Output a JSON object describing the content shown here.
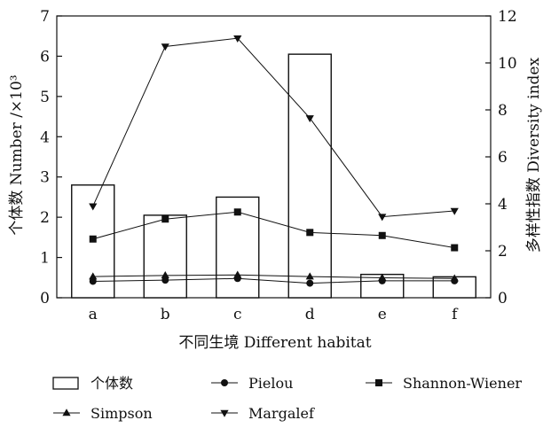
{
  "chart_data": {
    "type": "bar",
    "categories": [
      "a",
      "b",
      "c",
      "d",
      "e",
      "f"
    ],
    "xlabel": "不同生境 Different habitat",
    "ylabel_left": "个体数 Number /×10³",
    "ylabel_right": "多样性指数 Diversity index",
    "ylim_left": [
      0,
      7
    ],
    "yticks_left": [
      "0",
      "1",
      "2",
      "3",
      "4",
      "5",
      "6",
      "7"
    ],
    "ylim_right": [
      0,
      12
    ],
    "yticks_right": [
      "0",
      "2",
      "4",
      "6",
      "8",
      "10",
      "12"
    ],
    "grid": false,
    "legend_position": "bottom",
    "bars": {
      "name": "个体数",
      "axis": "left",
      "values": [
        2.8,
        2.05,
        2.5,
        6.05,
        0.58,
        0.52
      ]
    },
    "series": [
      {
        "name": "Pielou",
        "axis": "right",
        "marker": "circle",
        "values": [
          0.7,
          0.75,
          0.82,
          0.62,
          0.72,
          0.72
        ]
      },
      {
        "name": "Shannon-Wiener",
        "axis": "right",
        "marker": "square",
        "values": [
          2.5,
          3.35,
          3.65,
          2.78,
          2.65,
          2.13
        ]
      },
      {
        "name": "Simpson",
        "axis": "right",
        "marker": "triangle-up",
        "values": [
          0.9,
          0.95,
          0.97,
          0.9,
          0.85,
          0.82
        ]
      },
      {
        "name": "Margalef",
        "axis": "right",
        "marker": "triangle-down",
        "values": [
          3.9,
          10.7,
          11.05,
          7.65,
          3.45,
          3.7
        ]
      }
    ]
  },
  "legend": {
    "items": [
      {
        "label": "个体数",
        "marker": "box"
      },
      {
        "label": "Pielou",
        "marker": "circle"
      },
      {
        "label": "Shannon-Wiener",
        "marker": "square"
      },
      {
        "label": "Simpson",
        "marker": "triangle-up"
      },
      {
        "label": "Margalef",
        "marker": "triangle-down"
      }
    ]
  }
}
